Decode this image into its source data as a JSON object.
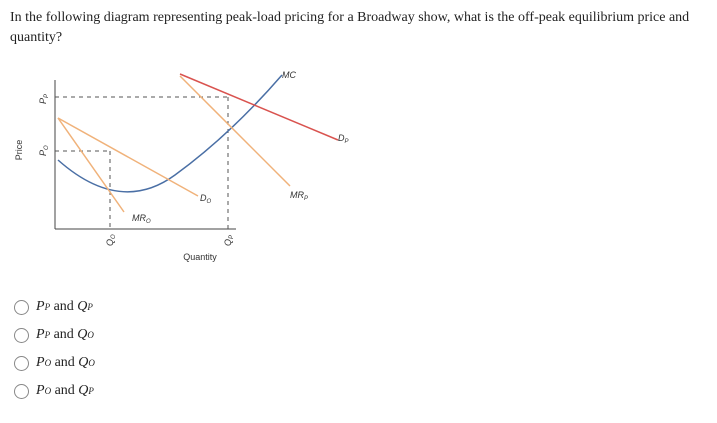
{
  "question": "In the following diagram representing peak-load pricing for a Broadway show, what is the off-peak equilibrium price and quantity?",
  "diagram": {
    "y_axis": "Price",
    "x_axis": "Quantity",
    "labels": {
      "mc": "MC",
      "dp": {
        "symbol": "D",
        "sub": "P"
      },
      "mrp": {
        "symbol": "MR",
        "sub": "P"
      },
      "do": {
        "symbol": "D",
        "sub": "O"
      },
      "mro": {
        "symbol": "MR",
        "sub": "O"
      },
      "pp": {
        "symbol": "P",
        "sub": "P"
      },
      "po": {
        "symbol": "P",
        "sub": "O"
      },
      "qo": {
        "symbol": "Q",
        "sub": "O"
      },
      "qp": {
        "symbol": "Q",
        "sub": "P"
      }
    }
  },
  "options": [
    {
      "price": {
        "symbol": "P",
        "sub": "P"
      },
      "conj": "and",
      "quantity": {
        "symbol": "Q",
        "sub": "P"
      }
    },
    {
      "price": {
        "symbol": "P",
        "sub": "P"
      },
      "conj": "and",
      "quantity": {
        "symbol": "Q",
        "sub": "O"
      }
    },
    {
      "price": {
        "symbol": "P",
        "sub": "O"
      },
      "conj": "and",
      "quantity": {
        "symbol": "Q",
        "sub": "O"
      }
    },
    {
      "price": {
        "symbol": "P",
        "sub": "O"
      },
      "conj": "and",
      "quantity": {
        "symbol": "Q",
        "sub": "P"
      }
    }
  ]
}
